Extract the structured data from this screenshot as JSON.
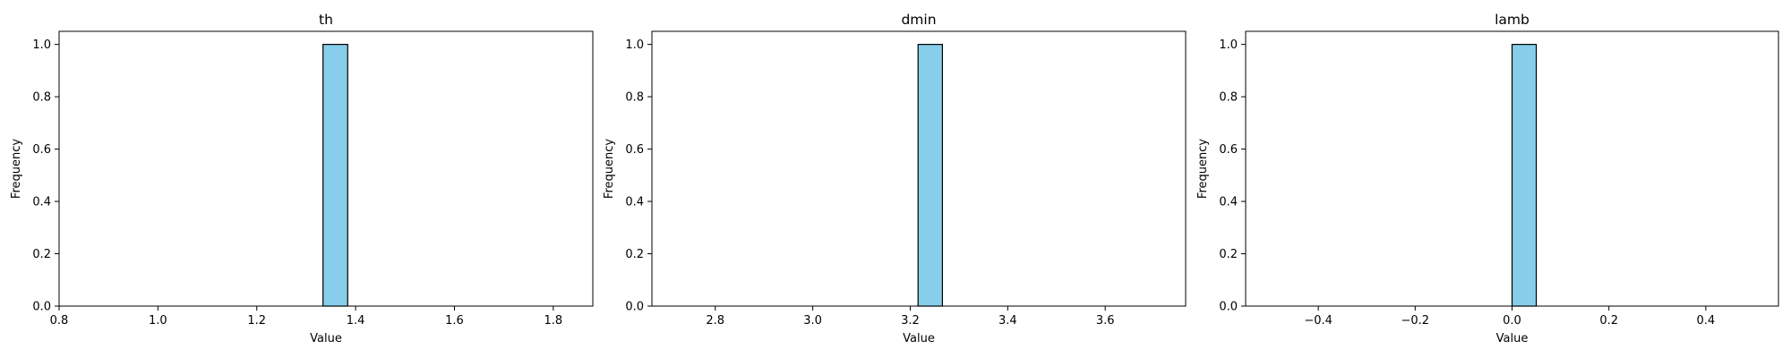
{
  "chart_data": [
    {
      "type": "bar",
      "title": "th",
      "xlabel": "Value",
      "ylabel": "Frequency",
      "xlim": [
        0.8,
        1.88
      ],
      "ylim": [
        0,
        1.05
      ],
      "xticks": [
        "0.8",
        "1.0",
        "1.2",
        "1.4",
        "1.6",
        "1.8"
      ],
      "yticks": [
        "0.0",
        "0.2",
        "0.4",
        "0.6",
        "0.8",
        "1.0"
      ],
      "bins": [
        {
          "x0": 1.334,
          "x1": 1.384,
          "count": 1
        }
      ],
      "baseline_range": [
        0.84,
        1.84
      ],
      "grid": false,
      "bar_color": "#87ceeb",
      "edge_color": "#000000"
    },
    {
      "type": "bar",
      "title": "dmin",
      "xlabel": "Value",
      "ylabel": "Frequency",
      "xlim": [
        2.67,
        3.765
      ],
      "ylim": [
        0,
        1.05
      ],
      "xticks": [
        "2.8",
        "3.0",
        "3.2",
        "3.4",
        "3.6"
      ],
      "yticks": [
        "0.0",
        "0.2",
        "0.4",
        "0.6",
        "0.8",
        "1.0"
      ],
      "bins": [
        {
          "x0": 3.216,
          "x1": 3.266,
          "count": 1
        }
      ],
      "baseline_range": [
        2.716,
        3.716
      ],
      "grid": false,
      "bar_color": "#87ceeb",
      "edge_color": "#000000"
    },
    {
      "type": "bar",
      "title": "lamb",
      "xlabel": "Value",
      "ylabel": "Frequency",
      "xlim": [
        -0.55,
        0.55
      ],
      "ylim": [
        0,
        1.05
      ],
      "xticks": [
        "−0.4",
        "−0.2",
        "0.0",
        "0.2",
        "0.4"
      ],
      "yticks": [
        "0.0",
        "0.2",
        "0.4",
        "0.6",
        "0.8",
        "1.0"
      ],
      "bins": [
        {
          "x0": 0.0,
          "x1": 0.05,
          "count": 1
        }
      ],
      "baseline_range": [
        -0.5,
        0.5
      ],
      "grid": false,
      "bar_color": "#87ceeb",
      "edge_color": "#000000"
    }
  ]
}
